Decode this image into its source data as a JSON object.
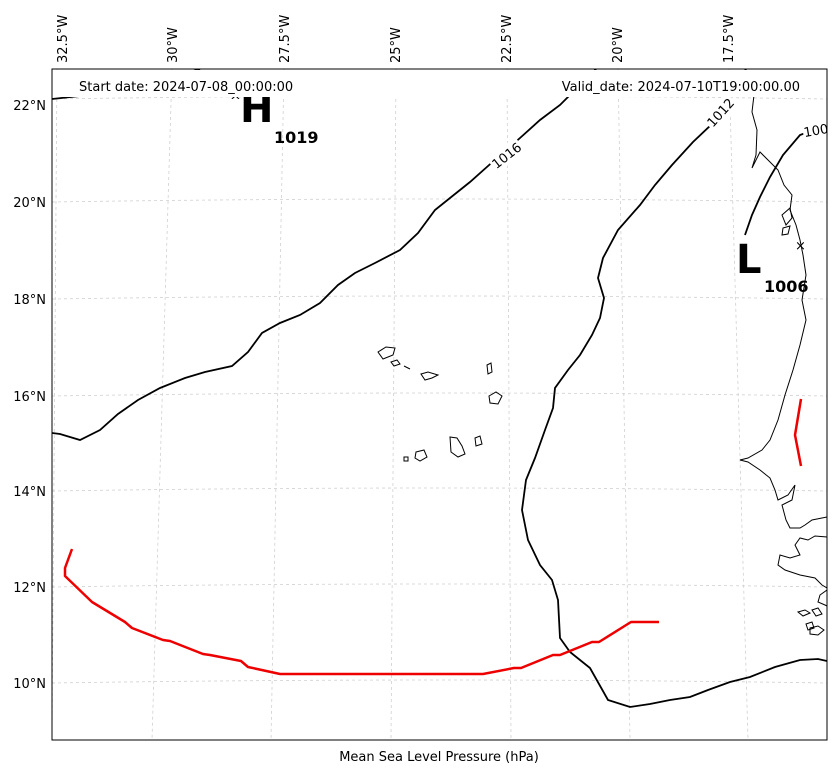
{
  "header": {
    "start_date": "Start date: 2024-07-08_00:00:00",
    "valid_date": "Valid_date: 2024-07-10T19:00:00.00"
  },
  "axes": {
    "lon_labels": [
      "32.5°W",
      "30°W",
      "27.5°W",
      "25°W",
      "22.5°W",
      "20°W",
      "17.5°W"
    ],
    "lat_labels": [
      "22°N",
      "20°N",
      "18°N",
      "16°N",
      "14°N",
      "12°N",
      "10°N"
    ],
    "xlabel": "Mean Sea Level Pressure (hPa)"
  },
  "centers": {
    "high": {
      "symbol": "H",
      "value": "1019"
    },
    "low": {
      "symbol": "L",
      "value": "1006"
    }
  },
  "isobars": {
    "c1016": "1016",
    "c1012": "1012",
    "c1008": "100"
  },
  "colors": {
    "isobar": "#000000",
    "track": "#ee0000",
    "coast": "#000000",
    "grid": "#cccccc"
  }
}
